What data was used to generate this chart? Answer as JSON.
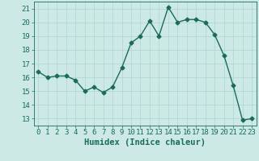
{
  "x": [
    0,
    1,
    2,
    3,
    4,
    5,
    6,
    7,
    8,
    9,
    10,
    11,
    12,
    13,
    14,
    15,
    16,
    17,
    18,
    19,
    20,
    21,
    22,
    23
  ],
  "y": [
    16.4,
    16.0,
    16.1,
    16.1,
    15.8,
    15.0,
    15.3,
    14.9,
    15.3,
    16.7,
    18.5,
    19.0,
    20.1,
    19.0,
    21.1,
    20.0,
    20.2,
    20.2,
    20.0,
    19.1,
    17.6,
    15.4,
    12.9,
    13.0
  ],
  "line_color": "#1a6b5a",
  "marker": "D",
  "marker_size": 2.5,
  "background_color": "#cce9e6",
  "grid_color": "#aed4d0",
  "xlabel": "Humidex (Indice chaleur)",
  "xlim": [
    -0.5,
    23.5
  ],
  "ylim": [
    12.5,
    21.5
  ],
  "yticks": [
    13,
    14,
    15,
    16,
    17,
    18,
    19,
    20,
    21
  ],
  "xticks": [
    0,
    1,
    2,
    3,
    4,
    5,
    6,
    7,
    8,
    9,
    10,
    11,
    12,
    13,
    14,
    15,
    16,
    17,
    18,
    19,
    20,
    21,
    22,
    23
  ],
  "xlabel_fontsize": 7.5,
  "tick_fontsize": 6.5,
  "line_width": 1.0
}
